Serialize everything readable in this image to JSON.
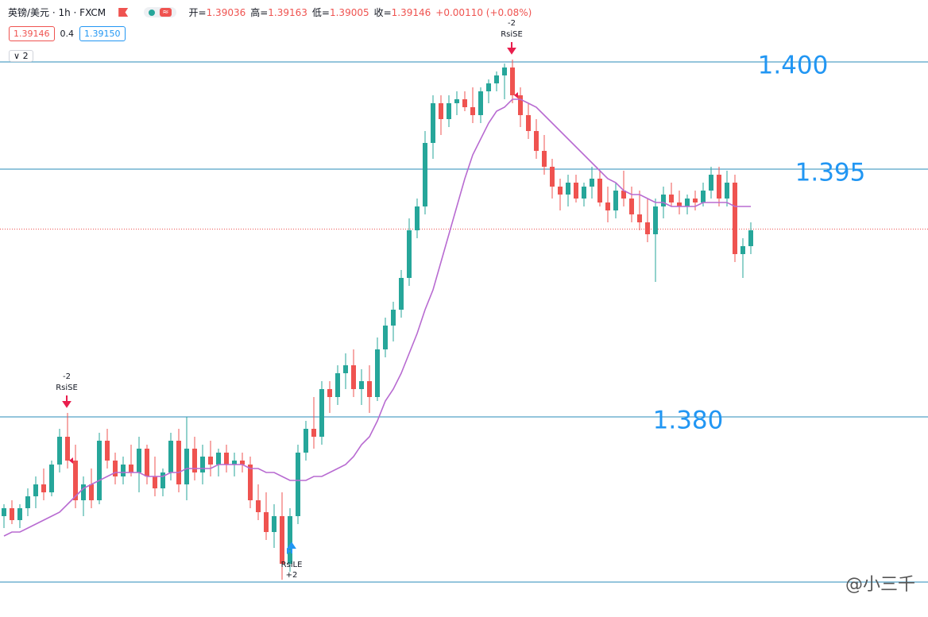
{
  "header": {
    "title": "英镑/美元 · 1h · FXCM",
    "ohlc": [
      {
        "label": "开=",
        "value": 1.39036
      },
      {
        "label": "高=",
        "value": 1.39163
      },
      {
        "label": "低=",
        "value": 1.39005
      },
      {
        "label": "收=",
        "value": 1.39146
      }
    ],
    "change": "+0.00110 (+0.08%)",
    "bid": 1.39146,
    "spread": 0.4,
    "ask": {
      "value": 1.3915,
      "label": "1.39150"
    },
    "indicators": "2"
  },
  "chart_data": {
    "type": "candlestick",
    "ylim": [
      1.37192,
      1.403
    ],
    "candles": [
      [
        1.377,
        1.3776,
        1.3764,
        1.3774
      ],
      [
        1.3774,
        1.3778,
        1.3766,
        1.3768
      ],
      [
        1.3768,
        1.3776,
        1.3764,
        1.3774
      ],
      [
        1.3774,
        1.3784,
        1.377,
        1.378
      ],
      [
        1.378,
        1.379,
        1.3774,
        1.3786
      ],
      [
        1.3786,
        1.3794,
        1.3778,
        1.3782
      ],
      [
        1.3782,
        1.3798,
        1.378,
        1.3796
      ],
      [
        1.3796,
        1.3814,
        1.3792,
        1.381
      ],
      [
        1.381,
        1.3822,
        1.3794,
        1.3798
      ],
      [
        1.3798,
        1.3806,
        1.3774,
        1.3778
      ],
      [
        1.3778,
        1.379,
        1.377,
        1.3786
      ],
      [
        1.3786,
        1.3794,
        1.3774,
        1.3778
      ],
      [
        1.3778,
        1.3812,
        1.3776,
        1.3808
      ],
      [
        1.3808,
        1.3814,
        1.3794,
        1.3798
      ],
      [
        1.3798,
        1.3802,
        1.3786,
        1.379
      ],
      [
        1.379,
        1.38,
        1.3786,
        1.3796
      ],
      [
        1.3796,
        1.3806,
        1.379,
        1.3792
      ],
      [
        1.3792,
        1.381,
        1.3782,
        1.3804
      ],
      [
        1.3804,
        1.3806,
        1.3786,
        1.379
      ],
      [
        1.379,
        1.38,
        1.378,
        1.3784
      ],
      [
        1.3784,
        1.3794,
        1.378,
        1.3792
      ],
      [
        1.3792,
        1.3812,
        1.3788,
        1.3808
      ],
      [
        1.3808,
        1.3814,
        1.3782,
        1.3786
      ],
      [
        1.3786,
        1.382,
        1.3778,
        1.3804
      ],
      [
        1.3804,
        1.381,
        1.3788,
        1.3792
      ],
      [
        1.3792,
        1.3806,
        1.3786,
        1.38
      ],
      [
        1.38,
        1.3808,
        1.379,
        1.3796
      ],
      [
        1.3796,
        1.3804,
        1.379,
        1.3802
      ],
      [
        1.3802,
        1.3806,
        1.3792,
        1.3796
      ],
      [
        1.3796,
        1.3802,
        1.379,
        1.3798
      ],
      [
        1.3798,
        1.3802,
        1.3792,
        1.3796
      ],
      [
        1.3796,
        1.38,
        1.3774,
        1.3778
      ],
      [
        1.3778,
        1.3786,
        1.3768,
        1.3772
      ],
      [
        1.3772,
        1.3782,
        1.3758,
        1.3762
      ],
      [
        1.3762,
        1.3776,
        1.3754,
        1.377
      ],
      [
        1.377,
        1.3782,
        1.3738,
        1.3746
      ],
      [
        1.3746,
        1.3774,
        1.3742,
        1.377
      ],
      [
        1.377,
        1.3806,
        1.3766,
        1.3802
      ],
      [
        1.3802,
        1.3818,
        1.3798,
        1.3814
      ],
      [
        1.3814,
        1.383,
        1.3804,
        1.381
      ],
      [
        1.381,
        1.3838,
        1.3806,
        1.3834
      ],
      [
        1.3834,
        1.3838,
        1.3822,
        1.383
      ],
      [
        1.383,
        1.3846,
        1.3826,
        1.3842
      ],
      [
        1.3842,
        1.3852,
        1.3834,
        1.3846
      ],
      [
        1.3846,
        1.3854,
        1.383,
        1.3834
      ],
      [
        1.3834,
        1.3844,
        1.3826,
        1.3838
      ],
      [
        1.3838,
        1.3846,
        1.3822,
        1.383
      ],
      [
        1.383,
        1.386,
        1.3828,
        1.3854
      ],
      [
        1.3854,
        1.387,
        1.385,
        1.3866
      ],
      [
        1.3866,
        1.3878,
        1.3858,
        1.3874
      ],
      [
        1.3874,
        1.3894,
        1.387,
        1.389
      ],
      [
        1.389,
        1.392,
        1.3886,
        1.3914
      ],
      [
        1.3914,
        1.393,
        1.391,
        1.3926
      ],
      [
        1.3926,
        1.3964,
        1.3922,
        1.3958
      ],
      [
        1.3958,
        1.3982,
        1.395,
        1.3978
      ],
      [
        1.3978,
        1.3982,
        1.3962,
        1.397
      ],
      [
        1.397,
        1.3982,
        1.3966,
        1.3978
      ],
      [
        1.3978,
        1.3984,
        1.3972,
        1.398
      ],
      [
        1.398,
        1.3984,
        1.3974,
        1.3976
      ],
      [
        1.3976,
        1.3986,
        1.3968,
        1.3972
      ],
      [
        1.3972,
        1.3986,
        1.3968,
        1.3984
      ],
      [
        1.3984,
        1.399,
        1.3978,
        1.3988
      ],
      [
        1.3988,
        1.3994,
        1.3984,
        1.3992
      ],
      [
        1.3992,
        1.3998,
        1.398,
        1.3996
      ],
      [
        1.3996,
        1.4,
        1.3978,
        1.3982
      ],
      [
        1.3982,
        1.3986,
        1.3966,
        1.3972
      ],
      [
        1.3972,
        1.3978,
        1.396,
        1.3964
      ],
      [
        1.3964,
        1.397,
        1.395,
        1.3954
      ],
      [
        1.3954,
        1.3962,
        1.3942,
        1.3946
      ],
      [
        1.3946,
        1.395,
        1.393,
        1.3936
      ],
      [
        1.3936,
        1.394,
        1.3924,
        1.3932
      ],
      [
        1.3932,
        1.3942,
        1.3926,
        1.3938
      ],
      [
        1.3938,
        1.3942,
        1.3928,
        1.393
      ],
      [
        1.393,
        1.3938,
        1.3926,
        1.3936
      ],
      [
        1.3936,
        1.3946,
        1.393,
        1.394
      ],
      [
        1.394,
        1.3944,
        1.3926,
        1.3928
      ],
      [
        1.3928,
        1.3936,
        1.3918,
        1.3924
      ],
      [
        1.3924,
        1.3938,
        1.392,
        1.3934
      ],
      [
        1.3934,
        1.3944,
        1.3926,
        1.393
      ],
      [
        1.393,
        1.3936,
        1.3918,
        1.3922
      ],
      [
        1.3922,
        1.3934,
        1.3914,
        1.3918
      ],
      [
        1.3918,
        1.393,
        1.3908,
        1.3912
      ],
      [
        1.3912,
        1.393,
        1.3888,
        1.3926
      ],
      [
        1.3926,
        1.3936,
        1.392,
        1.3932
      ],
      [
        1.3932,
        1.3938,
        1.3926,
        1.3928
      ],
      [
        1.3928,
        1.3934,
        1.3922,
        1.3926
      ],
      [
        1.3926,
        1.3932,
        1.3922,
        1.393
      ],
      [
        1.393,
        1.3934,
        1.3924,
        1.3928
      ],
      [
        1.3928,
        1.3938,
        1.3926,
        1.3934
      ],
      [
        1.3934,
        1.3946,
        1.393,
        1.3942
      ],
      [
        1.3942,
        1.3946,
        1.3926,
        1.393
      ],
      [
        1.393,
        1.3944,
        1.3926,
        1.3938
      ],
      [
        1.3938,
        1.3942,
        1.3898,
        1.3902
      ],
      [
        1.3902,
        1.391,
        1.389,
        1.3906
      ],
      [
        1.3906,
        1.3918,
        1.3902,
        1.3914
      ]
    ],
    "up_color": "#26a69a",
    "down_color": "#ef5350",
    "ma": {
      "color": "#b86bd1",
      "values": [
        1.376,
        1.3762,
        1.3762,
        1.3764,
        1.3766,
        1.3768,
        1.377,
        1.3772,
        1.3776,
        1.378,
        1.3784,
        1.3786,
        1.3788,
        1.379,
        1.3792,
        1.3792,
        1.3792,
        1.3792,
        1.379,
        1.379,
        1.379,
        1.3792,
        1.3792,
        1.3794,
        1.3794,
        1.3794,
        1.3794,
        1.3796,
        1.3796,
        1.3796,
        1.3796,
        1.3794,
        1.3794,
        1.3792,
        1.3792,
        1.379,
        1.3788,
        1.3788,
        1.3788,
        1.379,
        1.379,
        1.3792,
        1.3794,
        1.3796,
        1.38,
        1.3806,
        1.381,
        1.3818,
        1.3828,
        1.3834,
        1.3842,
        1.3852,
        1.3862,
        1.3874,
        1.3884,
        1.3898,
        1.3912,
        1.3926,
        1.394,
        1.3952,
        1.396,
        1.3968,
        1.3974,
        1.3976,
        1.398,
        1.398,
        1.3978,
        1.3976,
        1.3972,
        1.3968,
        1.3964,
        1.396,
        1.3956,
        1.3952,
        1.3948,
        1.3944,
        1.394,
        1.3938,
        1.3934,
        1.3932,
        1.3932,
        1.393,
        1.3928,
        1.3928,
        1.3926,
        1.3926,
        1.3926,
        1.3926,
        1.3928,
        1.3928,
        1.3928,
        1.3928,
        1.3926,
        1.3926,
        1.3926
      ]
    },
    "hlines": {
      "color": "#2a8bb8",
      "values": [
        1.39988,
        1.39448,
        1.382,
        1.37368
      ]
    },
    "annotations": [
      "1.400",
      "1.395",
      "1.380"
    ],
    "annotation_color": "#2196f3",
    "signals": [
      {
        "qty": "-2",
        "name": "RsiSE",
        "side": "short"
      },
      {
        "qty": "-2",
        "name": "RsiSE",
        "side": "short"
      },
      {
        "qty": "+2",
        "name": "RsiLE",
        "side": "long"
      }
    ]
  },
  "watermark": "@小三千"
}
